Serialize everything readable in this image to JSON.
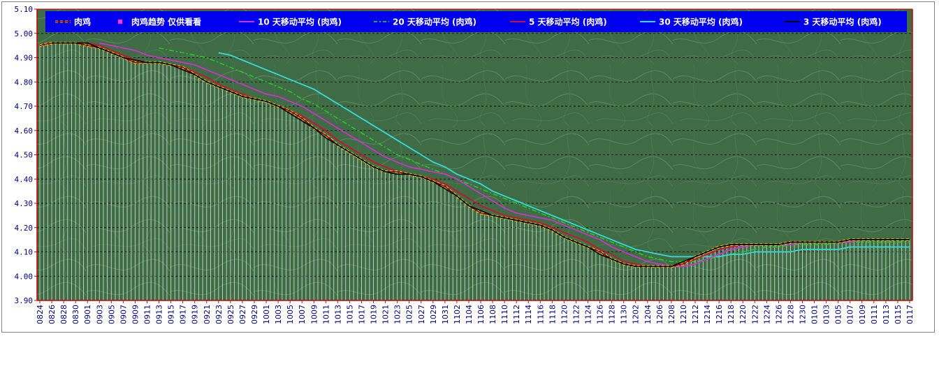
{
  "chart_data": {
    "type": "line",
    "title": "",
    "xlabel": "",
    "ylabel": "",
    "ylim": [
      3.9,
      5.1
    ],
    "y_ticks": [
      "3.90",
      "4.00",
      "4.10",
      "4.20",
      "4.30",
      "4.40",
      "4.50",
      "4.60",
      "4.70",
      "4.80",
      "4.90",
      "5.00",
      "5.10"
    ],
    "grid": "horizontal dashed",
    "legend_position": "top",
    "colors": {
      "plot_background": "#3f6b45",
      "legend_background": "#0000ee",
      "axis": "#cc0000",
      "tick_text": "#000080",
      "bar_fill": "#cfe6d5"
    },
    "x_labels": [
      "0824",
      "0826",
      "0828",
      "0830",
      "0901",
      "0903",
      "0905",
      "0907",
      "0909",
      "0911",
      "0913",
      "0915",
      "0917",
      "0919",
      "0921",
      "0923",
      "0925",
      "0927",
      "0929",
      "1001",
      "1003",
      "1005",
      "1007",
      "1009",
      "1011",
      "1013",
      "1015",
      "1017",
      "1019",
      "1021",
      "1023",
      "1025",
      "1027",
      "1029",
      "1031",
      "1102",
      "1104",
      "1106",
      "1108",
      "1110",
      "1112",
      "1114",
      "1116",
      "1118",
      "1120",
      "1122",
      "1124",
      "1126",
      "1128",
      "1130",
      "1202",
      "1204",
      "1206",
      "1208",
      "1210",
      "1212",
      "1214",
      "1216",
      "1218",
      "1220",
      "1222",
      "1224",
      "1226",
      "1228",
      "1230",
      "0101",
      "0103",
      "0105",
      "0107",
      "0109",
      "0111",
      "0113",
      "0115",
      "0117"
    ],
    "series": [
      {
        "name": "肉鸡",
        "color": "#8b0000",
        "style": "dashed-double",
        "values": [
          4.95,
          4.96,
          4.96,
          4.96,
          4.95,
          4.94,
          4.92,
          4.9,
          4.88,
          4.88,
          4.88,
          4.87,
          4.86,
          4.83,
          4.8,
          4.78,
          4.76,
          4.74,
          4.73,
          4.72,
          4.7,
          4.68,
          4.65,
          4.61,
          4.58,
          4.54,
          4.51,
          4.48,
          4.45,
          4.43,
          4.43,
          4.42,
          4.41,
          4.39,
          4.37,
          4.33,
          4.29,
          4.26,
          4.25,
          4.24,
          4.23,
          4.22,
          4.21,
          4.19,
          4.16,
          4.14,
          4.12,
          4.1,
          4.07,
          4.05,
          4.04,
          4.04,
          4.04,
          4.04,
          4.05,
          4.08,
          4.1,
          4.12,
          4.13,
          4.13,
          4.13,
          4.13,
          4.13,
          4.14,
          4.14,
          4.14,
          4.14,
          4.14,
          4.15,
          4.15,
          4.15,
          4.15,
          4.15,
          4.15
        ]
      },
      {
        "name": "肉鸡趋势 仅供看看",
        "color": "#ff33cc",
        "style": "bars",
        "values": [
          4.95,
          4.96,
          4.96,
          4.96,
          4.95,
          4.94,
          4.92,
          4.9,
          4.88,
          4.88,
          4.88,
          4.87,
          4.86,
          4.83,
          4.8,
          4.78,
          4.76,
          4.74,
          4.73,
          4.72,
          4.7,
          4.68,
          4.65,
          4.61,
          4.58,
          4.54,
          4.51,
          4.48,
          4.45,
          4.43,
          4.43,
          4.42,
          4.41,
          4.39,
          4.37,
          4.33,
          4.29,
          4.26,
          4.25,
          4.24,
          4.23,
          4.22,
          4.21,
          4.19,
          4.16,
          4.14,
          4.12,
          4.1,
          4.07,
          4.05,
          4.04,
          4.04,
          4.04,
          4.04,
          4.05,
          4.08,
          4.1,
          4.12,
          4.13,
          4.13,
          4.13,
          4.13,
          4.13,
          4.14,
          4.14,
          4.14,
          4.14,
          4.14,
          4.15,
          4.15,
          4.15,
          4.15,
          4.15,
          4.15
        ]
      },
      {
        "name": "10 天移动平均 (肉鸡)",
        "color": "#cc33cc",
        "style": "solid",
        "values": [
          null,
          null,
          null,
          null,
          null,
          4.96,
          4.95,
          4.94,
          4.93,
          4.91,
          4.9,
          4.89,
          4.88,
          4.87,
          4.85,
          4.83,
          4.81,
          4.79,
          4.77,
          4.75,
          4.74,
          4.72,
          4.7,
          4.67,
          4.64,
          4.61,
          4.58,
          4.55,
          4.52,
          4.49,
          4.47,
          4.45,
          4.44,
          4.43,
          4.42,
          4.4,
          4.37,
          4.34,
          4.31,
          4.28,
          4.26,
          4.25,
          4.24,
          4.23,
          4.21,
          4.19,
          4.17,
          4.15,
          4.12,
          4.1,
          4.08,
          4.06,
          4.05,
          4.04,
          4.04,
          4.05,
          4.07,
          4.09,
          4.11,
          4.12,
          4.13,
          4.13,
          4.13,
          4.13,
          4.14,
          4.14,
          4.14,
          4.14,
          4.14,
          4.15,
          4.15,
          4.15,
          4.15,
          4.15
        ]
      },
      {
        "name": "20 天移动平均 (肉鸡)",
        "color": "#22cc22",
        "style": "dashdot",
        "values": [
          null,
          null,
          null,
          null,
          null,
          null,
          null,
          null,
          null,
          null,
          4.94,
          4.93,
          4.92,
          4.91,
          4.9,
          4.88,
          4.86,
          4.84,
          4.82,
          4.8,
          4.78,
          4.76,
          4.73,
          4.71,
          4.68,
          4.65,
          4.62,
          4.59,
          4.56,
          4.53,
          4.5,
          4.48,
          4.46,
          4.44,
          4.42,
          4.4,
          4.38,
          4.36,
          4.34,
          4.32,
          4.3,
          4.28,
          4.26,
          4.24,
          4.22,
          4.2,
          4.18,
          4.16,
          4.14,
          4.12,
          4.1,
          4.08,
          4.07,
          4.06,
          4.06,
          4.06,
          4.07,
          4.08,
          4.09,
          4.1,
          4.11,
          4.12,
          4.12,
          4.13,
          4.13,
          4.13,
          4.13,
          4.14,
          4.14,
          4.14,
          4.14,
          4.14,
          4.14,
          4.14
        ]
      },
      {
        "name": "5 天移动平均 (肉鸡)",
        "color": "#cc1133",
        "style": "solid",
        "values": [
          null,
          null,
          4.96,
          4.96,
          4.96,
          4.95,
          4.93,
          4.91,
          4.89,
          4.88,
          4.88,
          4.87,
          4.86,
          4.84,
          4.82,
          4.79,
          4.77,
          4.75,
          4.73,
          4.72,
          4.7,
          4.68,
          4.66,
          4.63,
          4.6,
          4.56,
          4.53,
          4.5,
          4.47,
          4.45,
          4.43,
          4.42,
          4.41,
          4.4,
          4.38,
          4.35,
          4.32,
          4.29,
          4.27,
          4.25,
          4.24,
          4.23,
          4.22,
          4.2,
          4.18,
          4.16,
          4.14,
          4.11,
          4.09,
          4.06,
          4.05,
          4.04,
          4.04,
          4.04,
          4.05,
          4.07,
          4.09,
          4.11,
          4.12,
          4.13,
          4.13,
          4.13,
          4.13,
          4.14,
          4.14,
          4.14,
          4.14,
          4.14,
          4.15,
          4.15,
          4.15,
          4.15,
          4.15,
          4.15
        ]
      },
      {
        "name": "30 天移动平均 (肉鸡)",
        "color": "#33dddd",
        "style": "solid",
        "values": [
          null,
          null,
          null,
          null,
          null,
          null,
          null,
          null,
          null,
          null,
          null,
          null,
          null,
          null,
          null,
          4.92,
          4.91,
          4.89,
          4.87,
          4.85,
          4.83,
          4.81,
          4.79,
          4.77,
          4.74,
          4.71,
          4.68,
          4.65,
          4.62,
          4.59,
          4.56,
          4.53,
          4.5,
          4.47,
          4.45,
          4.42,
          4.4,
          4.38,
          4.35,
          4.33,
          4.31,
          4.29,
          4.27,
          4.25,
          4.23,
          4.21,
          4.19,
          4.17,
          4.15,
          4.13,
          4.11,
          4.1,
          4.09,
          4.08,
          4.08,
          4.08,
          4.08,
          4.08,
          4.09,
          4.09,
          4.1,
          4.1,
          4.1,
          4.1,
          4.11,
          4.11,
          4.11,
          4.11,
          4.12,
          4.12,
          4.12,
          4.12,
          4.12,
          4.12
        ]
      },
      {
        "name": "3 天移动平均 (肉鸡)",
        "color": "#000000",
        "style": "solid",
        "values": [
          null,
          4.96,
          4.96,
          4.96,
          4.96,
          4.94,
          4.92,
          4.9,
          4.89,
          4.88,
          4.88,
          4.87,
          4.85,
          4.83,
          4.8,
          4.78,
          4.76,
          4.74,
          4.73,
          4.72,
          4.7,
          4.67,
          4.64,
          4.61,
          4.57,
          4.54,
          4.51,
          4.48,
          4.45,
          4.43,
          4.42,
          4.42,
          4.41,
          4.39,
          4.36,
          4.33,
          4.29,
          4.27,
          4.25,
          4.24,
          4.23,
          4.22,
          4.21,
          4.19,
          4.16,
          4.14,
          4.12,
          4.09,
          4.07,
          4.05,
          4.04,
          4.04,
          4.04,
          4.04,
          4.06,
          4.08,
          4.1,
          4.12,
          4.13,
          4.13,
          4.13,
          4.13,
          4.13,
          4.14,
          4.14,
          4.14,
          4.14,
          4.14,
          4.15,
          4.15,
          4.15,
          4.15,
          4.15,
          4.15
        ]
      }
    ]
  }
}
